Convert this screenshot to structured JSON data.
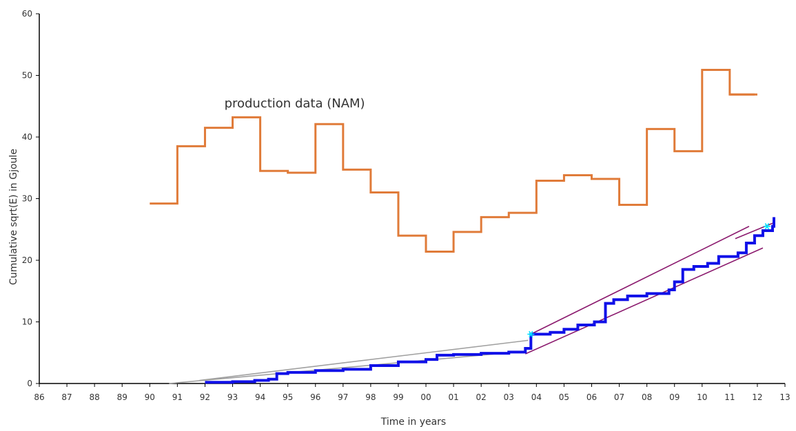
{
  "chart_data": {
    "type": "line",
    "title": "",
    "xlabel": "Time in years",
    "ylabel": "Cumulative sqrt(E) in Gjoule",
    "x_tick_labels": [
      "86",
      "87",
      "88",
      "89",
      "90",
      "91",
      "92",
      "93",
      "94",
      "95",
      "96",
      "97",
      "98",
      "99",
      "00",
      "01",
      "02",
      "03",
      "04",
      "05",
      "06",
      "07",
      "08",
      "09",
      "10",
      "11",
      "12",
      "13"
    ],
    "xlim": [
      1986,
      2013
    ],
    "ylim": [
      0,
      60
    ],
    "y_ticks": [
      0,
      10,
      20,
      30,
      40,
      50,
      60
    ],
    "grid": false,
    "annotations": [
      {
        "text": "production data (NAM)",
        "x": 1993.75,
        "y": 45.5
      }
    ],
    "series": [
      {
        "name": "production data (NAM)",
        "color": "#E07B39",
        "step": true,
        "x": [
          1990,
          1991,
          1992,
          1993,
          1994,
          1995,
          1996,
          1997,
          1998,
          1999,
          2000,
          2001,
          2002,
          2003,
          2004,
          2005,
          2006,
          2007,
          2008,
          2009,
          2010,
          2011,
          2012
        ],
        "y": [
          29.2,
          38.5,
          41.5,
          43.2,
          34.5,
          34.2,
          42.1,
          34.7,
          31.0,
          24.0,
          21.4,
          24.6,
          27.0,
          27.7,
          32.9,
          33.8,
          33.2,
          29.0,
          41.3,
          37.7,
          50.9,
          46.9,
          46.9
        ]
      },
      {
        "color": "#1010E8",
        "step": true,
        "x": [
          1992,
          1993,
          1993.8,
          1994.3,
          1994.6,
          1995,
          1996,
          1997,
          1998,
          1999,
          2000,
          2000.4,
          2001,
          2002,
          2003,
          2003.6,
          2003.8,
          2004.5,
          2005,
          2005.5,
          2006.1,
          2006.5,
          2006.8,
          2007.3,
          2008,
          2008.8,
          2009.0,
          2009.3,
          2009.7,
          2010.2,
          2010.6,
          2011.3,
          2011.6,
          2011.9,
          2012.2,
          2012.55,
          2012.6
        ],
        "y": [
          0.2,
          0.3,
          0.5,
          0.7,
          1.6,
          1.8,
          2.1,
          2.3,
          2.9,
          3.5,
          3.9,
          4.6,
          4.7,
          4.9,
          5.1,
          5.7,
          8.0,
          8.3,
          8.8,
          9.5,
          10.0,
          13.0,
          13.6,
          14.2,
          14.6,
          15.2,
          16.5,
          18.5,
          19.0,
          19.5,
          20.6,
          21.2,
          22.8,
          24.0,
          24.8,
          25.5,
          27.0
        ]
      },
      {
        "color": "#A0A0A0",
        "x": [
          1991.8,
          2003.7
        ],
        "y": [
          0.5,
          7.0
        ]
      },
      {
        "color": "#A0A0A0",
        "x": [
          1990.7,
          2003.5
        ],
        "y": [
          0.0,
          5.2
        ]
      },
      {
        "color": "#8B1A6E",
        "x": [
          2003.8,
          2011.7
        ],
        "y": [
          8.0,
          25.5
        ]
      },
      {
        "color": "#8B1A6E",
        "x": [
          2003.6,
          2012.2
        ],
        "y": [
          4.8,
          22.0
        ]
      },
      {
        "color": "#8B1A6E",
        "x": [
          2011.2,
          2012.55
        ],
        "y": [
          23.5,
          26.0
        ]
      }
    ],
    "markers": [
      {
        "x": 2003.8,
        "y": 8.0,
        "color": "#00E5FF",
        "shape": "asterisk"
      },
      {
        "x": 2012.35,
        "y": 25.5,
        "color": "#00E5FF",
        "shape": "asterisk"
      }
    ]
  }
}
